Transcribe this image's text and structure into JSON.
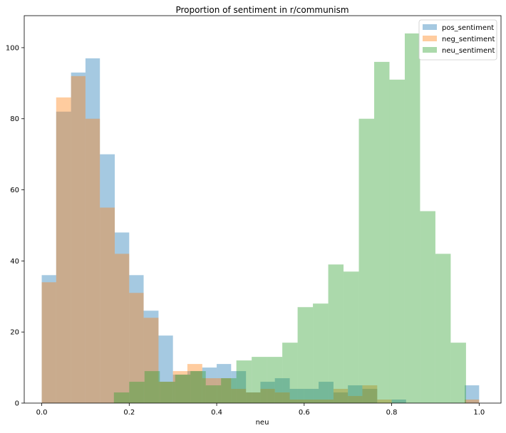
{
  "chart_data": {
    "type": "bar",
    "title": "Proportion of sentiment in r/communism",
    "xlabel": "neu",
    "ylabel": "",
    "xlim": [
      -0.04,
      1.05
    ],
    "ylim": [
      0,
      109
    ],
    "xticks": [
      "0.0",
      "0.2",
      "0.4",
      "0.6",
      "0.8",
      "1.0"
    ],
    "yticks": [
      "0",
      "20",
      "40",
      "60",
      "80",
      "100"
    ],
    "grid": false,
    "legend_position": "top-right",
    "series": [
      {
        "name": "pos_sentiment",
        "color": "#1f77b4",
        "bins": [
          {
            "x0": 0.0,
            "x1": 0.033,
            "value": 36
          },
          {
            "x0": 0.033,
            "x1": 0.067,
            "value": 82
          },
          {
            "x0": 0.067,
            "x1": 0.1,
            "value": 93
          },
          {
            "x0": 0.1,
            "x1": 0.133,
            "value": 97
          },
          {
            "x0": 0.133,
            "x1": 0.167,
            "value": 70
          },
          {
            "x0": 0.167,
            "x1": 0.2,
            "value": 48
          },
          {
            "x0": 0.2,
            "x1": 0.233,
            "value": 36
          },
          {
            "x0": 0.233,
            "x1": 0.267,
            "value": 26
          },
          {
            "x0": 0.267,
            "x1": 0.3,
            "value": 19
          },
          {
            "x0": 0.3,
            "x1": 0.333,
            "value": 8
          },
          {
            "x0": 0.333,
            "x1": 0.367,
            "value": 9
          },
          {
            "x0": 0.367,
            "x1": 0.4,
            "value": 10
          },
          {
            "x0": 0.4,
            "x1": 0.433,
            "value": 11
          },
          {
            "x0": 0.433,
            "x1": 0.467,
            "value": 9
          },
          {
            "x0": 0.467,
            "x1": 0.5,
            "value": 3
          },
          {
            "x0": 0.5,
            "x1": 0.533,
            "value": 6
          },
          {
            "x0": 0.533,
            "x1": 0.567,
            "value": 7
          },
          {
            "x0": 0.567,
            "x1": 0.6,
            "value": 4
          },
          {
            "x0": 0.6,
            "x1": 0.633,
            "value": 4
          },
          {
            "x0": 0.633,
            "x1": 0.667,
            "value": 6
          },
          {
            "x0": 0.667,
            "x1": 0.7,
            "value": 3
          },
          {
            "x0": 0.7,
            "x1": 0.733,
            "value": 5
          },
          {
            "x0": 0.733,
            "x1": 0.767,
            "value": 4
          },
          {
            "x0": 0.767,
            "x1": 0.8,
            "value": 0
          },
          {
            "x0": 0.8,
            "x1": 0.833,
            "value": 1
          },
          {
            "x0": 0.833,
            "x1": 0.867,
            "value": 0
          },
          {
            "x0": 0.867,
            "x1": 0.9,
            "value": 0
          },
          {
            "x0": 0.9,
            "x1": 0.933,
            "value": 0
          },
          {
            "x0": 0.933,
            "x1": 0.967,
            "value": 0
          },
          {
            "x0": 0.967,
            "x1": 1.0,
            "value": 5
          }
        ]
      },
      {
        "name": "neg_sentiment",
        "color": "#ff7f0e",
        "bins": [
          {
            "x0": 0.0,
            "x1": 0.033,
            "value": 34
          },
          {
            "x0": 0.033,
            "x1": 0.067,
            "value": 86
          },
          {
            "x0": 0.067,
            "x1": 0.1,
            "value": 92
          },
          {
            "x0": 0.1,
            "x1": 0.133,
            "value": 80
          },
          {
            "x0": 0.133,
            "x1": 0.167,
            "value": 55
          },
          {
            "x0": 0.167,
            "x1": 0.2,
            "value": 42
          },
          {
            "x0": 0.2,
            "x1": 0.233,
            "value": 31
          },
          {
            "x0": 0.233,
            "x1": 0.267,
            "value": 24
          },
          {
            "x0": 0.267,
            "x1": 0.3,
            "value": 6
          },
          {
            "x0": 0.3,
            "x1": 0.333,
            "value": 9
          },
          {
            "x0": 0.333,
            "x1": 0.367,
            "value": 11
          },
          {
            "x0": 0.367,
            "x1": 0.4,
            "value": 7
          },
          {
            "x0": 0.4,
            "x1": 0.433,
            "value": 7
          },
          {
            "x0": 0.433,
            "x1": 0.467,
            "value": 4
          },
          {
            "x0": 0.467,
            "x1": 0.5,
            "value": 3
          },
          {
            "x0": 0.5,
            "x1": 0.533,
            "value": 4
          },
          {
            "x0": 0.533,
            "x1": 0.567,
            "value": 3
          },
          {
            "x0": 0.567,
            "x1": 0.6,
            "value": 1
          },
          {
            "x0": 0.6,
            "x1": 0.633,
            "value": 1
          },
          {
            "x0": 0.633,
            "x1": 0.667,
            "value": 1
          },
          {
            "x0": 0.667,
            "x1": 0.7,
            "value": 4
          },
          {
            "x0": 0.7,
            "x1": 0.733,
            "value": 2
          },
          {
            "x0": 0.733,
            "x1": 0.767,
            "value": 5
          },
          {
            "x0": 0.767,
            "x1": 0.8,
            "value": 1
          },
          {
            "x0": 0.8,
            "x1": 0.833,
            "value": 0
          },
          {
            "x0": 0.833,
            "x1": 0.867,
            "value": 0
          },
          {
            "x0": 0.867,
            "x1": 0.9,
            "value": 0
          },
          {
            "x0": 0.9,
            "x1": 0.933,
            "value": 0
          },
          {
            "x0": 0.933,
            "x1": 0.967,
            "value": 0
          },
          {
            "x0": 0.967,
            "x1": 1.0,
            "value": 1
          }
        ]
      },
      {
        "name": "neu_sentiment",
        "color": "#2ca02c",
        "bins": [
          {
            "x0": 0.165,
            "x1": 0.2,
            "value": 3
          },
          {
            "x0": 0.2,
            "x1": 0.235,
            "value": 6
          },
          {
            "x0": 0.235,
            "x1": 0.27,
            "value": 9
          },
          {
            "x0": 0.27,
            "x1": 0.305,
            "value": 6
          },
          {
            "x0": 0.305,
            "x1": 0.34,
            "value": 8
          },
          {
            "x0": 0.34,
            "x1": 0.375,
            "value": 9
          },
          {
            "x0": 0.375,
            "x1": 0.41,
            "value": 5
          },
          {
            "x0": 0.41,
            "x1": 0.445,
            "value": 7
          },
          {
            "x0": 0.445,
            "x1": 0.48,
            "value": 12
          },
          {
            "x0": 0.48,
            "x1": 0.515,
            "value": 13
          },
          {
            "x0": 0.515,
            "x1": 0.55,
            "value": 13
          },
          {
            "x0": 0.55,
            "x1": 0.585,
            "value": 17
          },
          {
            "x0": 0.585,
            "x1": 0.62,
            "value": 27
          },
          {
            "x0": 0.62,
            "x1": 0.655,
            "value": 28
          },
          {
            "x0": 0.655,
            "x1": 0.69,
            "value": 39
          },
          {
            "x0": 0.69,
            "x1": 0.725,
            "value": 37
          },
          {
            "x0": 0.725,
            "x1": 0.76,
            "value": 80
          },
          {
            "x0": 0.76,
            "x1": 0.795,
            "value": 96
          },
          {
            "x0": 0.795,
            "x1": 0.83,
            "value": 91
          },
          {
            "x0": 0.83,
            "x1": 0.865,
            "value": 104
          },
          {
            "x0": 0.865,
            "x1": 0.9,
            "value": 54
          },
          {
            "x0": 0.9,
            "x1": 0.935,
            "value": 42
          },
          {
            "x0": 0.935,
            "x1": 0.97,
            "value": 17
          }
        ]
      }
    ]
  }
}
